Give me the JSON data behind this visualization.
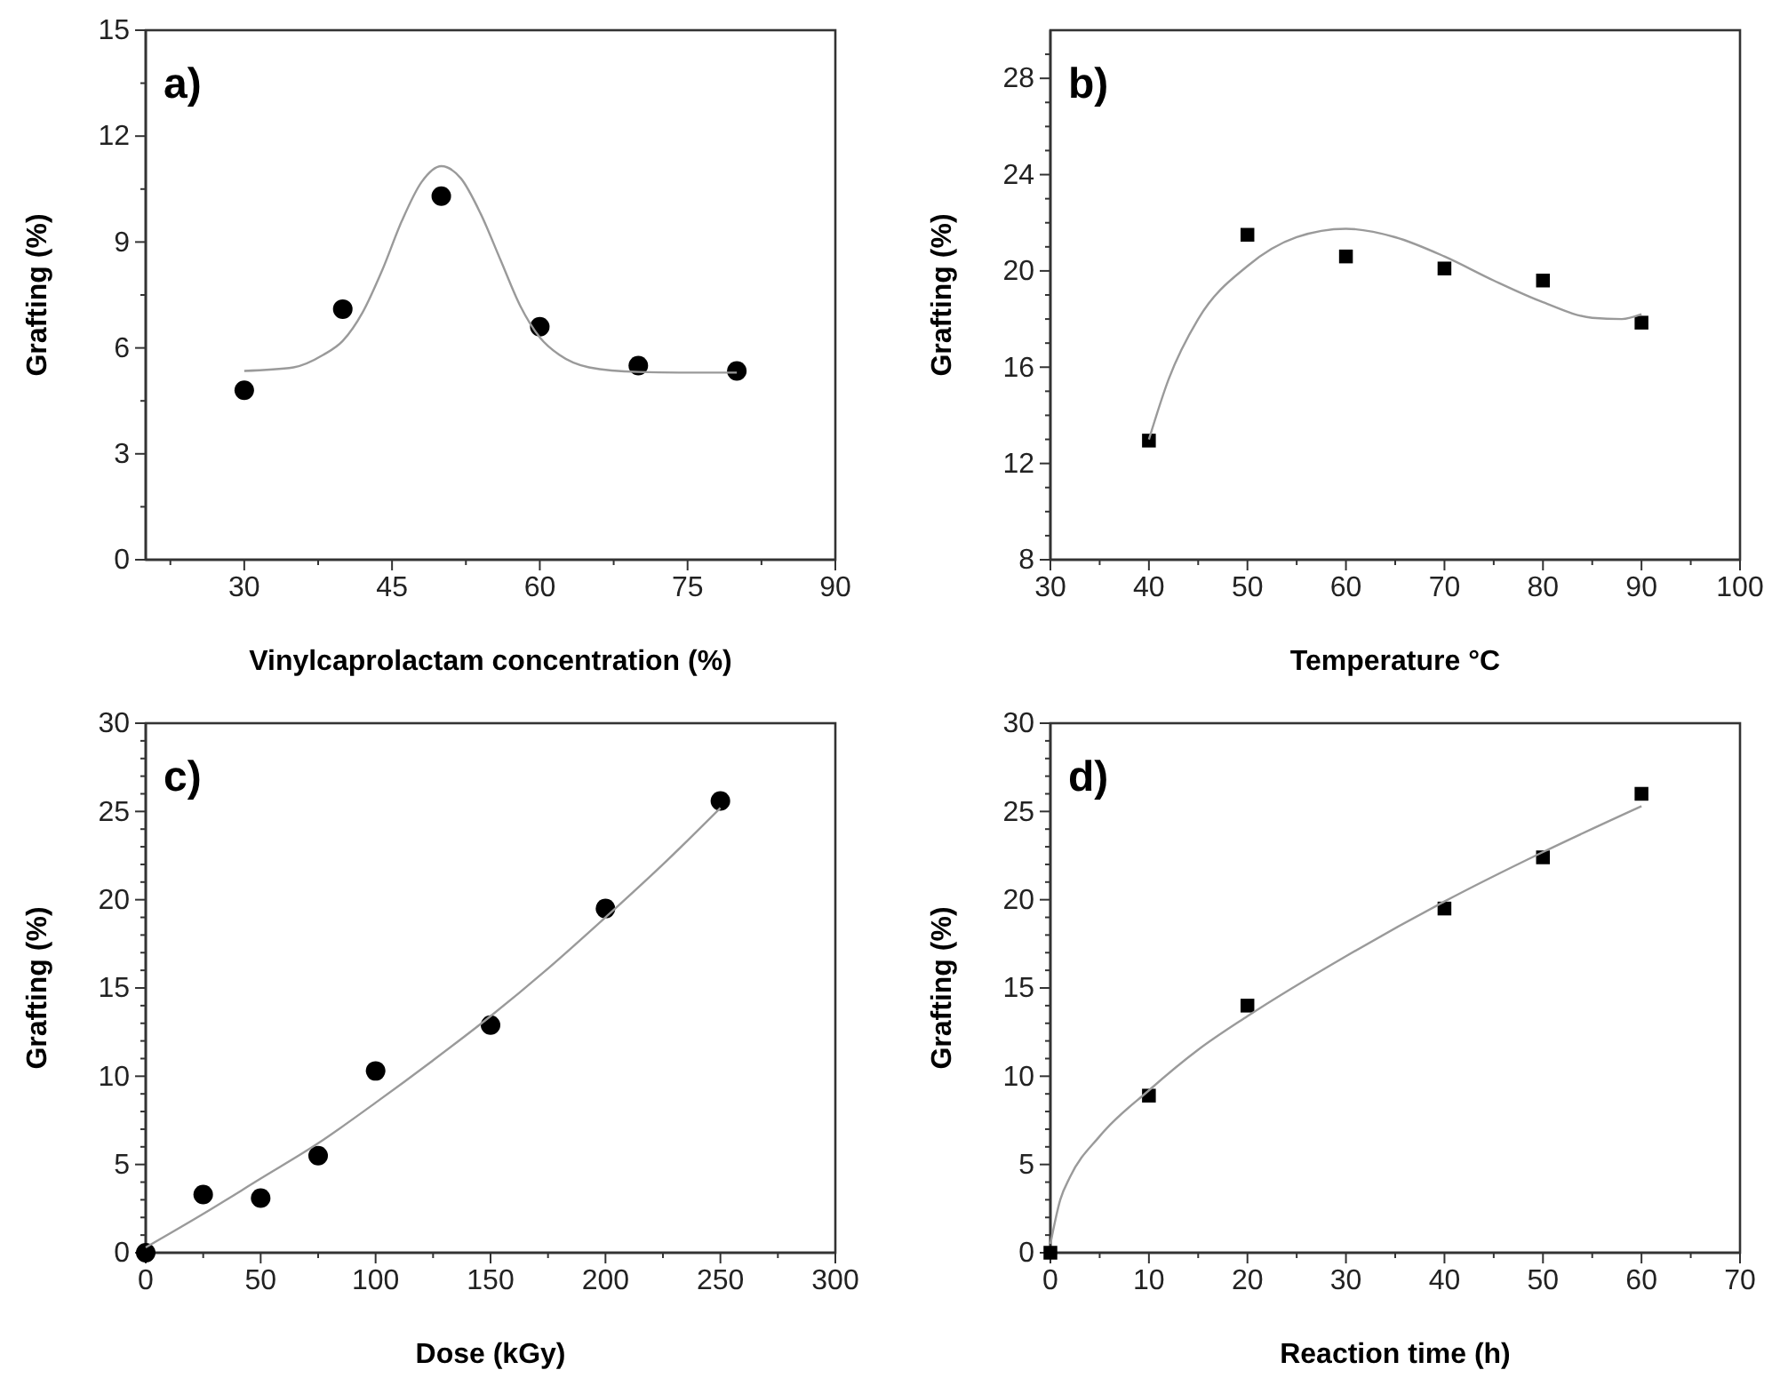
{
  "chart_data": [
    {
      "type": "scatter",
      "title": "a)",
      "xlabel": "Vinylcaprolactam concentration (%)",
      "ylabel": "Grafting (%)",
      "xlim": [
        20,
        90
      ],
      "ylim": [
        0,
        15
      ],
      "xticks": [
        {
          "value": 22.5,
          "label": null
        },
        30,
        {
          "value": 37.5,
          "label": null
        },
        45,
        {
          "value": 52.5,
          "label": null
        },
        60,
        {
          "value": 67.5,
          "label": null
        },
        75,
        {
          "value": 82.5,
          "label": null
        },
        90
      ],
      "yticks": [
        0,
        {
          "value": 1.5,
          "label": null
        },
        3,
        {
          "value": 4.5,
          "label": null
        },
        6,
        {
          "value": 7.5,
          "label": null
        },
        9,
        {
          "value": 10.5,
          "label": null
        },
        12,
        {
          "value": 13.5,
          "label": null
        },
        15
      ],
      "series": [
        {
          "type": "scatter",
          "marker": "circle",
          "color": "#000000",
          "x": [
            30,
            40,
            50,
            60,
            70,
            80
          ],
          "values": [
            4.8,
            7.1,
            10.3,
            6.6,
            5.5,
            5.35
          ]
        },
        {
          "type": "line",
          "marker": "none",
          "color": "#9a9a9a",
          "x": [
            30,
            35,
            38,
            40,
            42,
            44,
            46,
            48,
            50,
            52,
            54,
            56,
            58,
            60,
            62,
            65,
            70,
            75,
            80
          ],
          "values": [
            5.35,
            5.45,
            5.8,
            6.2,
            7.0,
            8.2,
            9.6,
            10.7,
            11.15,
            10.8,
            9.8,
            8.5,
            7.2,
            6.3,
            5.8,
            5.45,
            5.32,
            5.3,
            5.3
          ]
        }
      ]
    },
    {
      "type": "scatter",
      "title": "b)",
      "xlabel": "Temperature °C",
      "ylabel": "Grafting (%)",
      "xlim": [
        30,
        100
      ],
      "ylim": [
        8,
        30
      ],
      "xticks": [
        30,
        {
          "value": 35,
          "label": null
        },
        40,
        {
          "value": 45,
          "label": null
        },
        50,
        {
          "value": 55,
          "label": null
        },
        60,
        {
          "value": 65,
          "label": null
        },
        70,
        {
          "value": 75,
          "label": null
        },
        80,
        {
          "value": 85,
          "label": null
        },
        90,
        {
          "value": 95,
          "label": null
        },
        100
      ],
      "yticks": [
        8,
        {
          "value": 9,
          "label": null
        },
        {
          "value": 10,
          "label": null
        },
        {
          "value": 11,
          "label": null
        },
        12,
        {
          "value": 13,
          "label": null
        },
        {
          "value": 14,
          "label": null
        },
        {
          "value": 15,
          "label": null
        },
        16,
        {
          "value": 17,
          "label": null
        },
        {
          "value": 18,
          "label": null
        },
        {
          "value": 19,
          "label": null
        },
        20,
        {
          "value": 21,
          "label": null
        },
        {
          "value": 22,
          "label": null
        },
        {
          "value": 23,
          "label": null
        },
        24,
        {
          "value": 25,
          "label": null
        },
        {
          "value": 26,
          "label": null
        },
        {
          "value": 27,
          "label": null
        },
        28,
        {
          "value": 29,
          "label": null
        }
      ],
      "series": [
        {
          "type": "scatter",
          "marker": "square",
          "color": "#000000",
          "x": [
            40,
            50,
            60,
            70,
            80,
            90
          ],
          "values": [
            12.95,
            21.5,
            20.6,
            20.1,
            19.6,
            17.85
          ]
        },
        {
          "type": "line",
          "marker": "none",
          "color": "#9a9a9a",
          "x": [
            40,
            42,
            45,
            50,
            55,
            60,
            65,
            70,
            75,
            80,
            85,
            88,
            90
          ],
          "values": [
            13.0,
            15.5,
            18.0,
            20.2,
            21.4,
            21.75,
            21.4,
            20.6,
            19.6,
            18.7,
            18.05,
            18.0,
            18.2
          ]
        }
      ]
    },
    {
      "type": "scatter",
      "title": "c)",
      "xlabel": "Dose (kGy)",
      "ylabel": "Grafting (%)",
      "xlim": [
        0,
        300
      ],
      "ylim": [
        0,
        30
      ],
      "xticks": [
        0,
        {
          "value": 25,
          "label": null
        },
        50,
        {
          "value": 75,
          "label": null
        },
        100,
        {
          "value": 125,
          "label": null
        },
        150,
        {
          "value": 175,
          "label": null
        },
        200,
        {
          "value": 225,
          "label": null
        },
        250,
        {
          "value": 275,
          "label": null
        },
        300
      ],
      "yticks": [
        0,
        {
          "value": 1,
          "label": null
        },
        {
          "value": 2,
          "label": null
        },
        {
          "value": 3,
          "label": null
        },
        {
          "value": 4,
          "label": null
        },
        5,
        {
          "value": 6,
          "label": null
        },
        {
          "value": 7,
          "label": null
        },
        {
          "value": 8,
          "label": null
        },
        {
          "value": 9,
          "label": null
        },
        10,
        {
          "value": 11,
          "label": null
        },
        {
          "value": 12,
          "label": null
        },
        {
          "value": 13,
          "label": null
        },
        {
          "value": 14,
          "label": null
        },
        15,
        {
          "value": 16,
          "label": null
        },
        {
          "value": 17,
          "label": null
        },
        {
          "value": 18,
          "label": null
        },
        {
          "value": 19,
          "label": null
        },
        20,
        {
          "value": 21,
          "label": null
        },
        {
          "value": 22,
          "label": null
        },
        {
          "value": 23,
          "label": null
        },
        {
          "value": 24,
          "label": null
        },
        25,
        {
          "value": 26,
          "label": null
        },
        {
          "value": 27,
          "label": null
        },
        {
          "value": 28,
          "label": null
        },
        {
          "value": 29,
          "label": null
        },
        30
      ],
      "series": [
        {
          "type": "scatter",
          "marker": "circle",
          "color": "#000000",
          "x": [
            0,
            25,
            50,
            75,
            100,
            150,
            200,
            250
          ],
          "values": [
            0,
            3.3,
            3.1,
            5.5,
            10.3,
            12.9,
            19.5,
            25.6
          ]
        },
        {
          "type": "line",
          "marker": "none",
          "color": "#9a9a9a",
          "x": [
            0,
            25,
            50,
            75,
            100,
            125,
            150,
            175,
            200,
            225,
            250
          ],
          "values": [
            0.3,
            2.2,
            4.2,
            6.2,
            8.5,
            10.9,
            13.4,
            16.1,
            19.0,
            22.0,
            25.2
          ]
        }
      ]
    },
    {
      "type": "scatter",
      "title": "d)",
      "xlabel": "Reaction time (h)",
      "ylabel": "Grafting (%)",
      "xlim": [
        0,
        70
      ],
      "ylim": [
        0,
        30
      ],
      "xticks": [
        0,
        {
          "value": 5,
          "label": null
        },
        10,
        {
          "value": 15,
          "label": null
        },
        20,
        {
          "value": 25,
          "label": null
        },
        30,
        {
          "value": 35,
          "label": null
        },
        40,
        {
          "value": 45,
          "label": null
        },
        50,
        {
          "value": 55,
          "label": null
        },
        60,
        {
          "value": 65,
          "label": null
        },
        70
      ],
      "yticks": [
        0,
        {
          "value": 1,
          "label": null
        },
        {
          "value": 2,
          "label": null
        },
        {
          "value": 3,
          "label": null
        },
        {
          "value": 4,
          "label": null
        },
        5,
        {
          "value": 6,
          "label": null
        },
        {
          "value": 7,
          "label": null
        },
        {
          "value": 8,
          "label": null
        },
        {
          "value": 9,
          "label": null
        },
        10,
        {
          "value": 11,
          "label": null
        },
        {
          "value": 12,
          "label": null
        },
        {
          "value": 13,
          "label": null
        },
        {
          "value": 14,
          "label": null
        },
        15,
        {
          "value": 16,
          "label": null
        },
        {
          "value": 17,
          "label": null
        },
        {
          "value": 18,
          "label": null
        },
        {
          "value": 19,
          "label": null
        },
        20,
        {
          "value": 21,
          "label": null
        },
        {
          "value": 22,
          "label": null
        },
        {
          "value": 23,
          "label": null
        },
        {
          "value": 24,
          "label": null
        },
        25,
        {
          "value": 26,
          "label": null
        },
        {
          "value": 27,
          "label": null
        },
        {
          "value": 28,
          "label": null
        },
        {
          "value": 29,
          "label": null
        },
        30
      ],
      "series": [
        {
          "type": "scatter",
          "marker": "square",
          "color": "#000000",
          "x": [
            0,
            10,
            20,
            40,
            50,
            60
          ],
          "values": [
            0,
            8.9,
            14.0,
            19.5,
            22.4,
            26.0
          ]
        },
        {
          "type": "line",
          "marker": "none",
          "color": "#9a9a9a",
          "x": [
            0,
            1,
            2,
            5,
            10,
            15,
            20,
            30,
            40,
            50,
            60
          ],
          "values": [
            0.5,
            3.0,
            4.3,
            6.6,
            9.2,
            11.5,
            13.4,
            16.8,
            19.9,
            22.7,
            25.3
          ]
        }
      ]
    }
  ]
}
